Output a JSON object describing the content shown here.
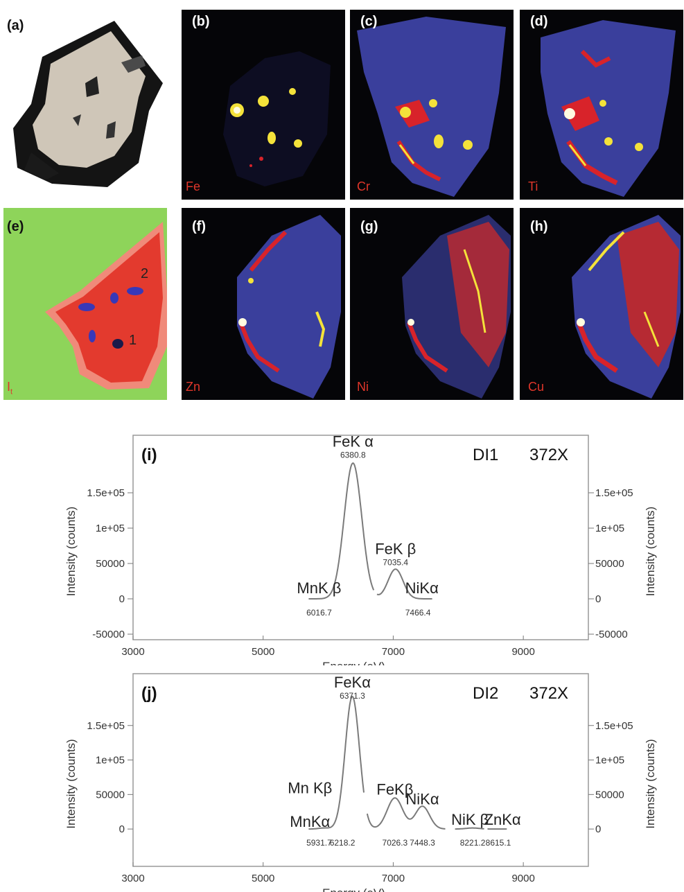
{
  "panels": {
    "a": {
      "label": "(a)"
    },
    "b": {
      "label": "(b)",
      "element": "Fe"
    },
    "c": {
      "label": "(c)",
      "element": "Cr"
    },
    "d": {
      "label": "(d)",
      "element": "Ti"
    },
    "e": {
      "label": "(e)",
      "element": "I",
      "subscript": "t",
      "regions": [
        "1",
        "2"
      ]
    },
    "f": {
      "label": "(f)",
      "element": "Zn"
    },
    "g": {
      "label": "(g)",
      "element": "Ni"
    },
    "h": {
      "label": "(h)",
      "element": "Cu"
    }
  },
  "colors": {
    "map_background": "#050508",
    "map_mineral": "#3a3f9c",
    "hot_red": "#d8232a",
    "hot_yellow": "#f4e23a",
    "element_label": "#e0362a",
    "spectrum_line": "#7a7a7a",
    "frame": "#999999"
  },
  "chart_data": [
    {
      "type": "line",
      "panel_label": "(i)",
      "sample": "DI1",
      "magnification": "372X",
      "xlabel": "Energy (eV)",
      "ylabel": "Intensity (counts)",
      "xlim": [
        3000,
        10000
      ],
      "ylim": [
        -50000,
        200000
      ],
      "x_ticks": [
        "3000",
        "5000",
        "7000",
        "9000"
      ],
      "y_ticks": [
        "-50000",
        "0",
        "50000",
        "1e+05",
        "1.5e+05"
      ],
      "peaks": [
        {
          "x": 6380.8,
          "y": 192000,
          "sigma": 135
        },
        {
          "x": 7035.4,
          "y": 42000,
          "sigma": 115
        }
      ],
      "segments": [
        {
          "xmin": 5700,
          "xmax": 6700
        },
        {
          "xmin": 6750,
          "xmax": 7600
        }
      ],
      "annotations": [
        {
          "name": "FeK α",
          "energy": "6380.8",
          "x": 6380.8,
          "y": 215000,
          "size": "large"
        },
        {
          "name": "FeK β",
          "energy": "7035.4",
          "x": 7035.4,
          "y": 63000,
          "size": "large"
        },
        {
          "name": "MnK  β",
          "energy": "6016.7",
          "x": 5860,
          "y": 8000,
          "ex": 5860,
          "size": "large"
        },
        {
          "name": "NiKα",
          "energy": "7466.4",
          "x": 7440,
          "y": 8000,
          "ex": 7380,
          "size": "large"
        }
      ]
    },
    {
      "type": "line",
      "panel_label": "(j)",
      "sample": "DI2",
      "magnification": "372X",
      "xlabel": "Energy (eV)",
      "ylabel": "Intensity (counts)",
      "xlim": [
        3000,
        10000
      ],
      "ylim": [
        -30000,
        210000
      ],
      "x_ticks": [
        "3000",
        "5000",
        "7000",
        "9000"
      ],
      "y_ticks": [
        "0",
        "50000",
        "1e+05",
        "1.5e+05"
      ],
      "peaks": [
        {
          "x": 6371.3,
          "y": 192000,
          "sigma": 110
        },
        {
          "x": 7026.3,
          "y": 45000,
          "sigma": 120
        },
        {
          "x": 7448.3,
          "y": 33000,
          "sigma": 110
        },
        {
          "x": 5931.7,
          "y": 1500,
          "sigma": 80
        },
        {
          "x": 8221.2,
          "y": 1500,
          "sigma": 100
        }
      ],
      "segments": [
        {
          "xmin": 5700,
          "xmax": 6550
        },
        {
          "xmin": 6600,
          "xmax": 7800
        },
        {
          "xmin": 7950,
          "xmax": 8400
        },
        {
          "xmin": 8450,
          "xmax": 8750
        }
      ],
      "annotations": [
        {
          "name": "FeKα",
          "energy": "6371.3",
          "x": 6371.3,
          "y": 205000,
          "size": "large"
        },
        {
          "name": "Mn Kβ",
          "x": 5720,
          "y": 52000,
          "size": "large"
        },
        {
          "name": "FeKβ",
          "x": 7026.3,
          "y": 50000,
          "size": "large"
        },
        {
          "name": "NiKα",
          "x": 7448.3,
          "y": 36000,
          "size": "large"
        },
        {
          "name": "MnKα",
          "energy": "5931.7",
          "x": 5720,
          "y": 3000,
          "ex": 5860,
          "size": "large"
        },
        {
          "name": "",
          "energy": "6218.2",
          "x": 6218.2,
          "y": 0,
          "ex": 6218.2
        },
        {
          "name": "",
          "energy": "7026.3",
          "x": 7026.3,
          "y": 0,
          "ex": 7026.3
        },
        {
          "name": "",
          "energy": "7448.3",
          "x": 7448.3,
          "y": 0,
          "ex": 7448.3
        },
        {
          "name": "NiK β",
          "energy": "8221.2",
          "x": 8180,
          "y": 6000,
          "ex": 8221.2,
          "size": "large"
        },
        {
          "name": "ZnKα",
          "energy": "8615.1",
          "x": 8680,
          "y": 6000,
          "ex": 8615.1,
          "size": "large"
        }
      ]
    }
  ]
}
